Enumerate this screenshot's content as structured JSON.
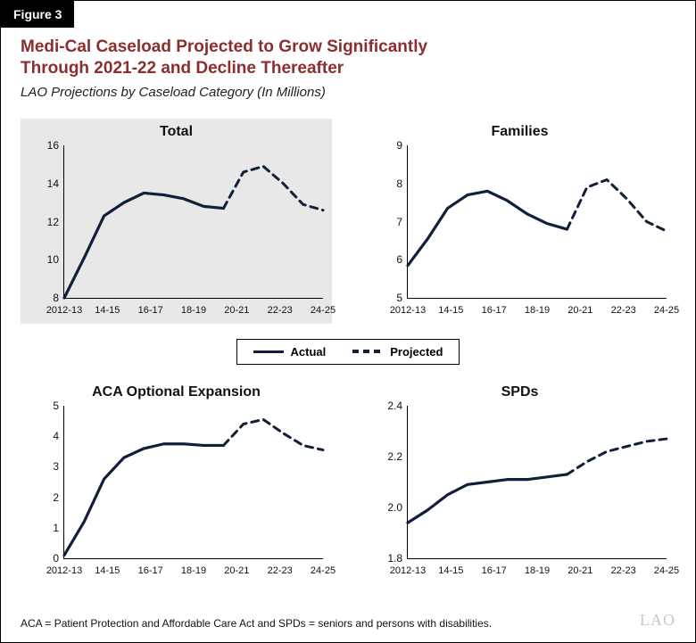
{
  "figure_label": "Figure 3",
  "headline": "Medi-Cal Caseload Projected to Grow Significantly\nThrough 2021-22 and Decline Thereafter",
  "subhead": "LAO Projections by Caseload Category (In Millions)",
  "legend": {
    "actual": "Actual",
    "projected": "Projected"
  },
  "x_categories": [
    "2012-13",
    "14-15",
    "16-17",
    "18-19",
    "20-21",
    "22-23",
    "24-25"
  ],
  "series_style": {
    "line_color": "#111f3a",
    "line_width_actual": 3.2,
    "line_width_projected": 3.0,
    "dash_pattern": "8 6",
    "background_plain": "#ffffff",
    "background_highlight": "#e8e8e8",
    "axis_color": "#000000"
  },
  "typography": {
    "headline_color": "#8b2e2e",
    "headline_fontsize_pt": 15,
    "subhead_fontsize_pt": 12,
    "chart_title_fontsize_pt": 13,
    "tick_fontsize_pt": 9,
    "footnote_fontsize_pt": 9
  },
  "charts": [
    {
      "id": "total",
      "title": "Total",
      "highlight": true,
      "ylim": [
        8,
        16
      ],
      "ytick_step": 2,
      "actual": [
        8.0,
        10.1,
        12.3,
        13.0,
        13.5,
        13.4,
        13.2,
        12.8,
        12.7
      ],
      "projected": [
        12.7,
        14.6,
        14.9,
        14.0,
        12.9,
        12.6
      ]
    },
    {
      "id": "families",
      "title": "Families",
      "highlight": false,
      "ylim": [
        5,
        9
      ],
      "ytick_step": 1,
      "actual": [
        5.85,
        6.55,
        7.35,
        7.7,
        7.8,
        7.55,
        7.2,
        6.95,
        6.8
      ],
      "projected": [
        6.8,
        7.9,
        8.1,
        7.6,
        7.0,
        6.75
      ]
    },
    {
      "id": "aca",
      "title": "ACA Optional Expansion",
      "highlight": false,
      "ylim": [
        0,
        5
      ],
      "ytick_step": 1,
      "actual": [
        0.1,
        1.2,
        2.6,
        3.3,
        3.6,
        3.75,
        3.75,
        3.7,
        3.7
      ],
      "projected": [
        3.7,
        4.4,
        4.55,
        4.1,
        3.7,
        3.55
      ]
    },
    {
      "id": "spds",
      "title": "SPDs",
      "highlight": false,
      "ylim": [
        1.8,
        2.4
      ],
      "ytick_step": 0.2,
      "ytick_decimals": 1,
      "actual": [
        1.94,
        1.99,
        2.05,
        2.09,
        2.1,
        2.11,
        2.11,
        2.12,
        2.13
      ],
      "projected": [
        2.13,
        2.18,
        2.22,
        2.24,
        2.26,
        2.27
      ]
    }
  ],
  "footnote": "ACA = Patient Protection and Affordable Care Act and SPDs = seniors and persons with disabilities.",
  "brand": "LAO"
}
